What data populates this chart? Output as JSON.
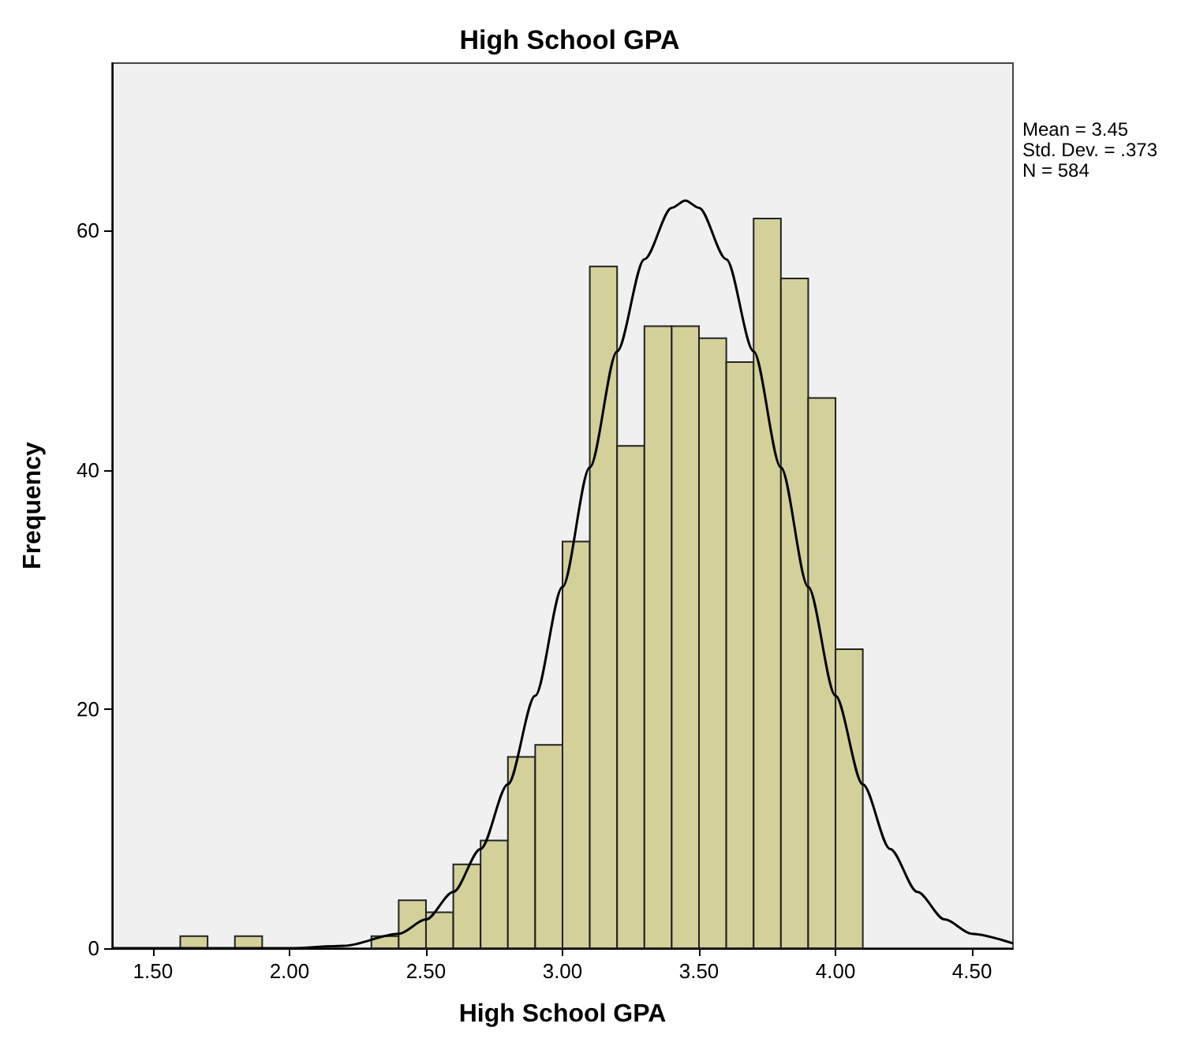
{
  "chart_data": {
    "type": "histogram",
    "title": "High School GPA",
    "xlabel": "High School GPA",
    "ylabel": "Frequency",
    "bins": [
      1.6,
      1.7,
      1.8,
      1.9,
      2.0,
      2.1,
      2.2,
      2.3,
      2.4,
      2.5,
      2.6,
      2.7,
      2.8,
      2.9,
      3.0,
      3.1,
      3.2,
      3.3,
      3.4,
      3.5,
      3.6,
      3.7,
      3.8,
      3.9,
      4.0,
      4.1
    ],
    "values": [
      1,
      0,
      1,
      0,
      0,
      0,
      0,
      1,
      4,
      3,
      7,
      9,
      16,
      17,
      34,
      57,
      42,
      52,
      52,
      51,
      49,
      61,
      56,
      46,
      25
    ],
    "color": "#d4d09a",
    "series": [
      {
        "type": "line",
        "color": "#000000",
        "x": [
          1.35,
          2.0,
          2.2,
          2.4,
          2.5,
          2.6,
          2.7,
          2.8,
          2.9,
          3.0,
          3.1,
          3.2,
          3.3,
          3.4,
          3.45,
          3.5,
          3.6,
          3.7,
          3.8,
          3.9,
          4.0,
          4.1,
          4.2,
          4.3,
          4.4,
          4.5,
          4.65
        ],
        "values": [
          0,
          0,
          0.2,
          1.2,
          2.4,
          4.7,
          8.3,
          13.7,
          21.1,
          30.2,
          40.2,
          49.9,
          57.6,
          61.9,
          62.5,
          61.9,
          57.6,
          49.9,
          40.2,
          30.2,
          21.1,
          13.7,
          8.3,
          4.7,
          2.4,
          1.2,
          0.4
        ]
      }
    ],
    "annotations": [
      "Mean = 3.45",
      "Std. Dev. = .373",
      "N = 584"
    ],
    "xlim": [
      1.35,
      4.65
    ],
    "ylim": [
      0,
      74
    ],
    "xticks": [
      {
        "value": 1.5,
        "label": "1.50"
      },
      {
        "value": 2.0,
        "label": "2.00"
      },
      {
        "value": 2.5,
        "label": "2.50"
      },
      {
        "value": 3.0,
        "label": "3.00"
      },
      {
        "value": 3.5,
        "label": "3.50"
      },
      {
        "value": 4.0,
        "label": "4.00"
      },
      {
        "value": 4.5,
        "label": "4.50"
      }
    ],
    "yticks": [
      0,
      20,
      40,
      60
    ],
    "grid": false,
    "legend": false,
    "marker": "none"
  }
}
